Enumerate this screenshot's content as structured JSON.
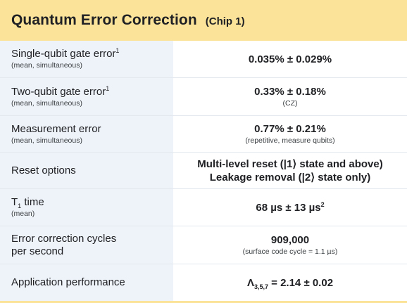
{
  "header": {
    "title": "Quantum Error Correction",
    "subtitle": "(Chip 1)"
  },
  "rows": [
    {
      "label": "Single-qubit gate error",
      "label_sup": "1",
      "label_sub": "(mean, simultaneous)",
      "value": "0.035% ± 0.029%",
      "value_sub": ""
    },
    {
      "label": "Two-qubit gate error",
      "label_sup": "1",
      "label_sub": "(mean, simultaneous)",
      "value": "0.33% ± 0.18%",
      "value_sub": "(CZ)"
    },
    {
      "label": "Measurement error",
      "label_sub": "(mean, simultaneous)",
      "value": "0.77% ± 0.21%",
      "value_sub": "(repetitive, measure qubits)"
    },
    {
      "label": "Reset options",
      "value_line1": "Multi-level reset (|1⟩ state and above)",
      "value_line2": "Leakage removal (|2⟩ state only)"
    },
    {
      "label_prefix": "T",
      "label_subscript": "1",
      "label_rest": " time",
      "label_sub": "(mean)",
      "value": "68 µs ± 13 µs",
      "value_sup": "2"
    },
    {
      "label_line1": "Error correction cycles",
      "label_line2": "per second",
      "value": "909,000",
      "value_sub": "(surface code cycle = 1.1 µs)"
    },
    {
      "label": "Application performance",
      "value_prefix": "Λ",
      "value_subscript": "3,5,7",
      "value_rest": " = 2.14 ± 0.02"
    }
  ],
  "colors": {
    "header": "#fbe49a",
    "label_bg": "#eef3fa",
    "text": "#202124"
  }
}
